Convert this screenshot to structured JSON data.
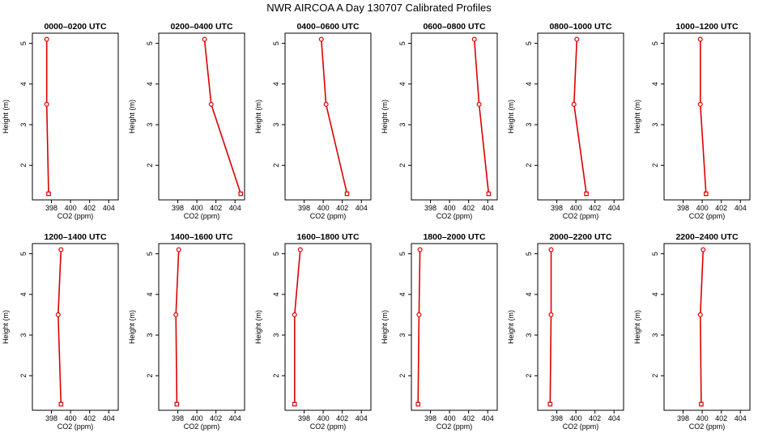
{
  "figure_title": "NWR AIRCOA A  Day 130707  Calibrated Profiles",
  "colors": {
    "profile_line": "#dd0000",
    "axes": "#000000",
    "background": "#ffffff"
  },
  "chart_data": [
    {
      "type": "line",
      "title": "0000–0200 UTC",
      "xlabel": "CO2 (ppm)",
      "ylabel": "Height (m)",
      "xlim": [
        396,
        405
      ],
      "ylim": [
        1.15,
        5.25
      ],
      "xticks": [
        398,
        400,
        402,
        404
      ],
      "yticks": [
        2,
        3,
        4,
        5
      ],
      "series": [
        {
          "x": [
            397.5,
            397.5,
            397.7
          ],
          "y": [
            5.1,
            3.5,
            1.3
          ]
        }
      ]
    },
    {
      "type": "line",
      "title": "0200–0400 UTC",
      "xlabel": "CO2 (ppm)",
      "ylabel": "Height (m)",
      "xlim": [
        396,
        405
      ],
      "ylim": [
        1.15,
        5.25
      ],
      "xticks": [
        398,
        400,
        402,
        404
      ],
      "yticks": [
        2,
        3,
        4,
        5
      ],
      "series": [
        {
          "x": [
            400.8,
            401.5,
            404.6
          ],
          "y": [
            5.1,
            3.5,
            1.3
          ]
        }
      ]
    },
    {
      "type": "line",
      "title": "0400–0600 UTC",
      "xlabel": "CO2 (ppm)",
      "ylabel": "Height (m)",
      "xlim": [
        396,
        405
      ],
      "ylim": [
        1.15,
        5.25
      ],
      "xticks": [
        398,
        400,
        402,
        404
      ],
      "yticks": [
        2,
        3,
        4,
        5
      ],
      "series": [
        {
          "x": [
            399.8,
            400.3,
            402.5
          ],
          "y": [
            5.1,
            3.5,
            1.3
          ]
        }
      ]
    },
    {
      "type": "line",
      "title": "0600–0800 UTC",
      "xlabel": "CO2 (ppm)",
      "ylabel": "Height (m)",
      "xlim": [
        396,
        405
      ],
      "ylim": [
        1.15,
        5.25
      ],
      "xticks": [
        398,
        400,
        402,
        404
      ],
      "yticks": [
        2,
        3,
        4,
        5
      ],
      "series": [
        {
          "x": [
            402.6,
            403.1,
            404.1
          ],
          "y": [
            5.1,
            3.5,
            1.3
          ]
        }
      ]
    },
    {
      "type": "line",
      "title": "0800–1000 UTC",
      "xlabel": "CO2 (ppm)",
      "ylabel": "Height (m)",
      "xlim": [
        396,
        405
      ],
      "ylim": [
        1.15,
        5.25
      ],
      "xticks": [
        398,
        400,
        402,
        404
      ],
      "yticks": [
        2,
        3,
        4,
        5
      ],
      "series": [
        {
          "x": [
            400.1,
            399.8,
            401.1
          ],
          "y": [
            5.1,
            3.5,
            1.3
          ]
        }
      ]
    },
    {
      "type": "line",
      "title": "1000–1200 UTC",
      "xlabel": "CO2 (ppm)",
      "ylabel": "Height (m)",
      "xlim": [
        396,
        405
      ],
      "ylim": [
        1.15,
        5.25
      ],
      "xticks": [
        398,
        400,
        402,
        404
      ],
      "yticks": [
        2,
        3,
        4,
        5
      ],
      "series": [
        {
          "x": [
            399.8,
            399.8,
            400.4
          ],
          "y": [
            5.1,
            3.5,
            1.3
          ]
        }
      ]
    },
    {
      "type": "line",
      "title": "1200–1400 UTC",
      "xlabel": "CO2 (ppm)",
      "ylabel": "Height (m)",
      "xlim": [
        396,
        405
      ],
      "ylim": [
        1.15,
        5.25
      ],
      "xticks": [
        398,
        400,
        402,
        404
      ],
      "yticks": [
        2,
        3,
        4,
        5
      ],
      "series": [
        {
          "x": [
            399.0,
            398.7,
            399.0
          ],
          "y": [
            5.1,
            3.5,
            1.3
          ]
        }
      ]
    },
    {
      "type": "line",
      "title": "1400–1600 UTC",
      "xlabel": "CO2 (ppm)",
      "ylabel": "Height (m)",
      "xlim": [
        396,
        405
      ],
      "ylim": [
        1.15,
        5.25
      ],
      "xticks": [
        398,
        400,
        402,
        404
      ],
      "yticks": [
        2,
        3,
        4,
        5
      ],
      "series": [
        {
          "x": [
            398.1,
            397.8,
            397.9
          ],
          "y": [
            5.1,
            3.5,
            1.3
          ]
        }
      ]
    },
    {
      "type": "line",
      "title": "1600–1800 UTC",
      "xlabel": "CO2 (ppm)",
      "ylabel": "Height (m)",
      "xlim": [
        396,
        405
      ],
      "ylim": [
        1.15,
        5.25
      ],
      "xticks": [
        398,
        400,
        402,
        404
      ],
      "yticks": [
        2,
        3,
        4,
        5
      ],
      "series": [
        {
          "x": [
            397.6,
            397.0,
            397.0
          ],
          "y": [
            5.1,
            3.5,
            1.3
          ]
        }
      ]
    },
    {
      "type": "line",
      "title": "1800–2000 UTC",
      "xlabel": "CO2 (ppm)",
      "ylabel": "Height (m)",
      "xlim": [
        396,
        405
      ],
      "ylim": [
        1.15,
        5.25
      ],
      "xticks": [
        398,
        400,
        402,
        404
      ],
      "yticks": [
        2,
        3,
        4,
        5
      ],
      "series": [
        {
          "x": [
            396.9,
            396.8,
            396.7
          ],
          "y": [
            5.1,
            3.5,
            1.3
          ]
        }
      ]
    },
    {
      "type": "line",
      "title": "2000–2200 UTC",
      "xlabel": "CO2 (ppm)",
      "ylabel": "Height (m)",
      "xlim": [
        396,
        405
      ],
      "ylim": [
        1.15,
        5.25
      ],
      "xticks": [
        398,
        400,
        402,
        404
      ],
      "yticks": [
        2,
        3,
        4,
        5
      ],
      "series": [
        {
          "x": [
            397.4,
            397.4,
            397.3
          ],
          "y": [
            5.1,
            3.5,
            1.3
          ]
        }
      ]
    },
    {
      "type": "line",
      "title": "2200–2400 UTC",
      "xlabel": "CO2 (ppm)",
      "ylabel": "Height (m)",
      "xlim": [
        396,
        405
      ],
      "ylim": [
        1.15,
        5.25
      ],
      "xticks": [
        398,
        400,
        402,
        404
      ],
      "yticks": [
        2,
        3,
        4,
        5
      ],
      "series": [
        {
          "x": [
            400.1,
            399.8,
            399.9
          ],
          "y": [
            5.1,
            3.5,
            1.3
          ]
        }
      ]
    }
  ]
}
